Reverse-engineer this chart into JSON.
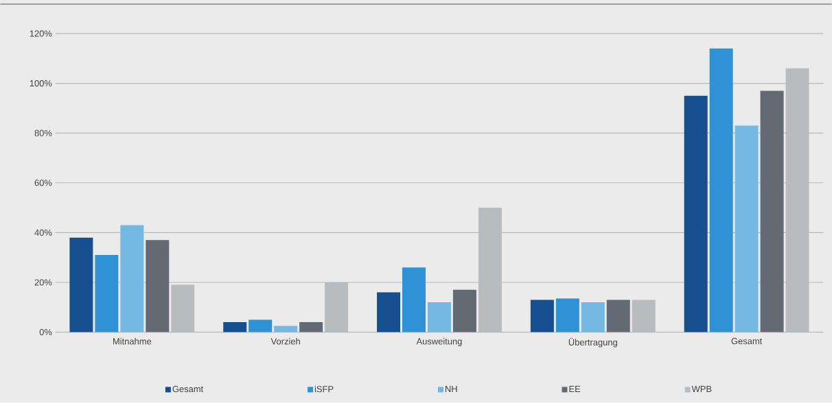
{
  "chart_data": {
    "type": "bar",
    "categories": [
      "Mitnahme",
      "Vorzieh",
      "Ausweitung",
      "Übertragung",
      "Gesamt"
    ],
    "series": [
      {
        "name": "Gesamt",
        "color": "#154f8f",
        "values": [
          38,
          4,
          16,
          13,
          95
        ]
      },
      {
        "name": "iSFP",
        "color": "#2e92d4",
        "values": [
          31,
          5,
          26,
          13.5,
          114
        ]
      },
      {
        "name": "NH",
        "color": "#74b7e2",
        "values": [
          43,
          2.5,
          12,
          12,
          83
        ]
      },
      {
        "name": "EE",
        "color": "#636a73",
        "values": [
          37,
          4,
          17,
          13,
          97
        ]
      },
      {
        "name": "WPB",
        "color": "#b8bcbf",
        "values": [
          19,
          20,
          50,
          13,
          106
        ]
      }
    ],
    "ylim": [
      0,
      120
    ],
    "yticks": [
      {
        "value": 0,
        "label": "0%"
      },
      {
        "value": 20,
        "label": "20%"
      },
      {
        "value": 40,
        "label": "40%"
      },
      {
        "value": 60,
        "label": "60%"
      },
      {
        "value": 80,
        "label": "80%"
      },
      {
        "value": 100,
        "label": "100%"
      },
      {
        "value": 120,
        "label": "120%"
      }
    ],
    "grid": "y",
    "legend": "bottom"
  }
}
